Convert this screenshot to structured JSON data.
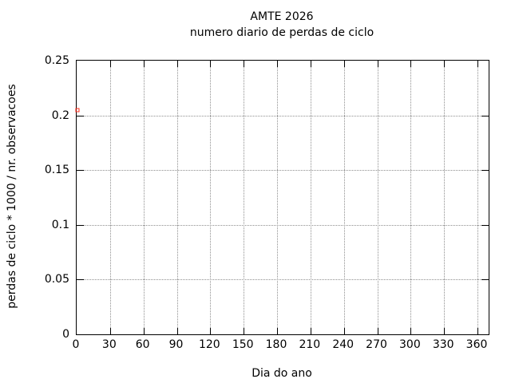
{
  "title": {
    "line1": "AMTE 2026",
    "line2": "numero diario de perdas de ciclo"
  },
  "chart_data": {
    "type": "scatter",
    "title": "AMTE 2026",
    "subtitle": "numero diario de perdas de ciclo",
    "xlabel": "Dia do ano",
    "ylabel": "perdas de ciclo * 1000 / nr. observacoes",
    "xlim": [
      0,
      370
    ],
    "ylim": [
      0,
      0.25
    ],
    "x_ticks": [
      0,
      30,
      60,
      90,
      120,
      150,
      180,
      210,
      240,
      270,
      300,
      330,
      360
    ],
    "x_tick_labels": [
      "0",
      "30",
      "60",
      "90",
      "120",
      "150",
      "180",
      "210",
      "240",
      "270",
      "300",
      "330",
      "360"
    ],
    "y_ticks": [
      0,
      0.05,
      0.1,
      0.15,
      0.2,
      0.25
    ],
    "y_tick_labels": [
      "0",
      "0.05",
      "0.1",
      "0.15",
      "0.2",
      "0.25"
    ],
    "grid": true,
    "grid_style": "dotted",
    "legend": false,
    "series": [
      {
        "marker": "open-square",
        "color": "#ff2b1a",
        "points": [
          {
            "x": 1,
            "y": 0.205
          }
        ]
      }
    ]
  },
  "colors": {
    "background": "#ffffff",
    "axis": "#000000",
    "grid": "#8f8f8f",
    "text": "#000000",
    "marker": "#ff2b1a"
  }
}
